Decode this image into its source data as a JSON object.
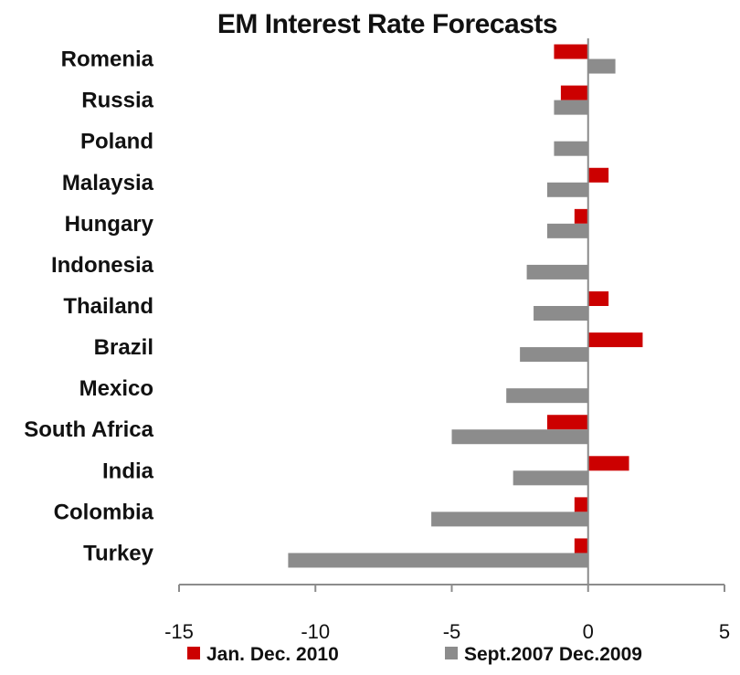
{
  "chart_data": {
    "type": "bar",
    "orientation": "horizontal",
    "title": "EM Interest Rate Forecasts",
    "xlabel": "",
    "ylabel": "",
    "categories": [
      "Romenia",
      "Russia",
      "Poland",
      "Malaysia",
      "Hungary",
      "Indonesia",
      "Thailand",
      "Brazil",
      "Mexico",
      "South Africa",
      "India",
      "Colombia",
      "Turkey"
    ],
    "series": [
      {
        "name": "Jan. Dec. 2010",
        "color": "#cc0000",
        "values": [
          -1.25,
          -1.0,
          0,
          0.75,
          -0.5,
          0,
          0.75,
          2.0,
          0,
          -1.5,
          1.5,
          -0.5,
          -0.5
        ]
      },
      {
        "name": "Sept.2007 Dec.2009",
        "color": "#8c8c8c",
        "values": [
          1.0,
          -1.25,
          -1.25,
          -1.5,
          -1.5,
          -2.25,
          -2.0,
          -2.5,
          -3.0,
          -5.0,
          -2.75,
          -5.75,
          -11.0
        ]
      }
    ],
    "xlim": [
      -15,
      5
    ],
    "xticks": [
      -15,
      -10,
      -5,
      0,
      5
    ],
    "grid": false,
    "legend_position": "bottom"
  }
}
